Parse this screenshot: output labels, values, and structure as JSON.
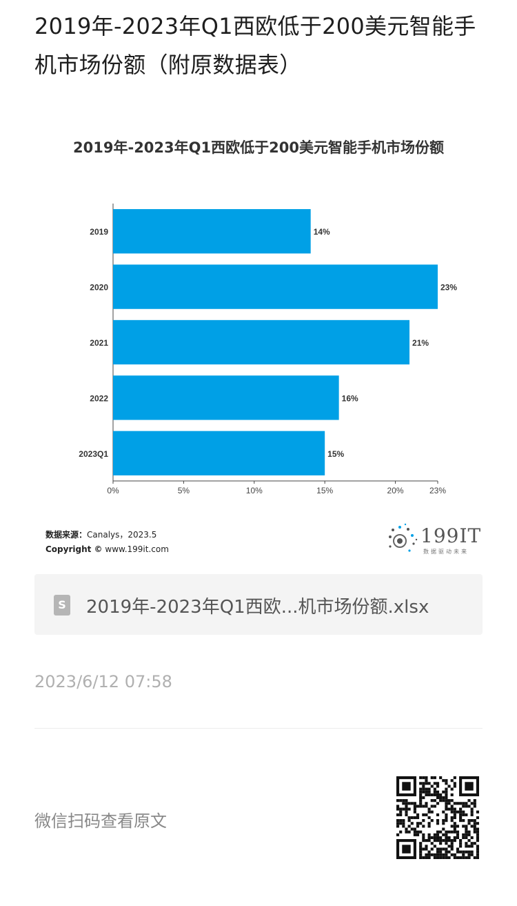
{
  "article": {
    "title": "2019年-2023年Q1西欧低于200美元智能手机市场份额（附原数据表）"
  },
  "chart_data": {
    "type": "bar",
    "orientation": "horizontal",
    "title": "2019年-2023年Q1西欧低于200美元智能手机市场份额",
    "categories": [
      "2019",
      "2020",
      "2021",
      "2022",
      "2023Q1"
    ],
    "values": [
      14,
      23,
      21,
      16,
      15
    ],
    "value_labels": [
      "14%",
      "23%",
      "21%",
      "16%",
      "15%"
    ],
    "xticks": [
      "0%",
      "5%",
      "10%",
      "15%",
      "20%",
      "23%"
    ],
    "xtick_values": [
      0,
      5,
      10,
      15,
      20,
      23
    ],
    "xlim": [
      0,
      23
    ],
    "bar_color": "#00a0e6",
    "grid": false
  },
  "source": {
    "label": "数据来源：",
    "value": "Canalys，2023.5",
    "copyright_label": "Copyright ©",
    "copyright_value": "www.199it.com"
  },
  "logo": {
    "text": "199IT",
    "subtitle": "数据驱动未来"
  },
  "attachment": {
    "icon": "file-s-icon",
    "icon_letter": "S",
    "filename": "2019年-2023年Q1西欧...机市场份额.xlsx"
  },
  "meta": {
    "timestamp": "2023/6/12 07:58"
  },
  "footer": {
    "qr_prompt": "微信扫码查看原文"
  }
}
